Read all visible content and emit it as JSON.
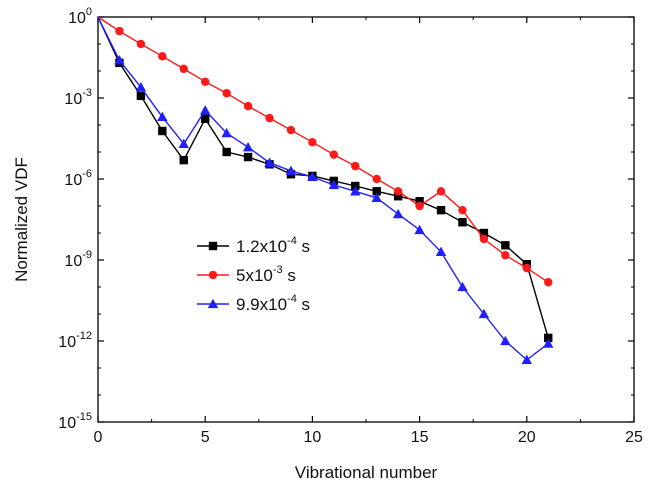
{
  "chart_data": {
    "type": "line",
    "xlabel": "Vibrational number",
    "ylabel": "Normalized VDF",
    "xlim": [
      0,
      25
    ],
    "xticks": [
      0,
      5,
      10,
      15,
      20,
      25
    ],
    "ylog": true,
    "ylim": [
      1e-15,
      1
    ],
    "yticks": [
      {
        "value": 1,
        "base": "10",
        "exp": "0"
      },
      {
        "value": 0.001,
        "base": "10",
        "exp": "-3"
      },
      {
        "value": 1e-06,
        "base": "10",
        "exp": "-6"
      },
      {
        "value": 1e-09,
        "base": "10",
        "exp": "-9"
      },
      {
        "value": 1e-12,
        "base": "10",
        "exp": "-12"
      },
      {
        "value": 1e-15,
        "base": "10",
        "exp": "-15"
      }
    ],
    "grid": false,
    "legend_position": "center-left",
    "series": [
      {
        "name": "1.2x10-4 s",
        "name_parts": {
          "base": "1.2x10",
          "exp": "-4",
          "unit": " s"
        },
        "color": "#000000",
        "marker": "square",
        "x": [
          0,
          1,
          2,
          3,
          4,
          5,
          6,
          7,
          8,
          9,
          10,
          11,
          12,
          13,
          14,
          15,
          16,
          17,
          18,
          19,
          20,
          21
        ],
        "y": [
          1,
          0.02,
          0.0012,
          6e-05,
          5e-06,
          0.00017,
          1e-05,
          6.5e-06,
          3.5e-06,
          1.5e-06,
          1.3e-06,
          8.5e-07,
          5.5e-07,
          3.5e-07,
          2.3e-07,
          1.5e-07,
          7e-08,
          2.5e-08,
          1e-08,
          3.5e-09,
          7e-10,
          1.3e-12
        ]
      },
      {
        "name": "5x10-3 s",
        "name_parts": {
          "base": "5x10",
          "exp": "-3",
          "unit": " s"
        },
        "color": "#ff1a1a",
        "marker": "circle",
        "x": [
          0,
          1,
          2,
          3,
          4,
          5,
          6,
          7,
          8,
          9,
          10,
          11,
          12,
          13,
          14,
          15,
          16,
          17,
          18,
          19,
          20,
          21
        ],
        "y": [
          1,
          0.3,
          0.1,
          0.035,
          0.012,
          0.004,
          0.0015,
          0.0005,
          0.00018,
          6.5e-05,
          2.3e-05,
          8e-06,
          3e-06,
          1e-06,
          3.5e-07,
          1e-07,
          3.5e-07,
          7e-08,
          6e-09,
          1.5e-09,
          5e-10,
          1.5e-10
        ]
      },
      {
        "name": "9.9x10-4 s",
        "name_parts": {
          "base": "9.9x10",
          "exp": "-4",
          "unit": " s"
        },
        "color": "#2020ff",
        "marker": "triangle",
        "x": [
          0,
          1,
          2,
          3,
          4,
          5,
          6,
          7,
          8,
          9,
          10,
          11,
          12,
          13,
          14,
          15,
          16,
          17,
          18,
          19,
          20,
          21
        ],
        "y": [
          1,
          0.025,
          0.0025,
          0.0002,
          2e-05,
          0.00035,
          5e-05,
          1.5e-05,
          4e-06,
          2e-06,
          1.2e-06,
          6e-07,
          3.5e-07,
          2e-07,
          5e-08,
          1.3e-08,
          2e-09,
          1e-10,
          1e-11,
          1e-12,
          2e-13,
          8e-13
        ]
      }
    ]
  }
}
